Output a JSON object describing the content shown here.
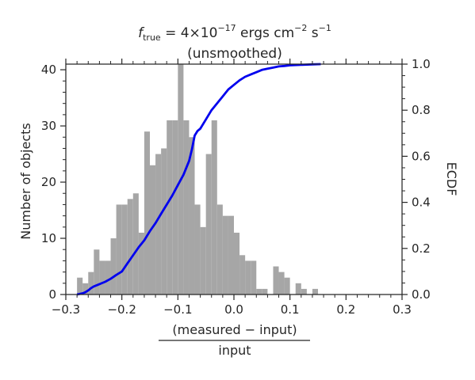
{
  "chart_data": {
    "type": "bar",
    "title": {
      "prefix": "f",
      "prefix_sub": "true",
      "middle": " = 4×10",
      "middle_sup": "−17",
      "unit": " ergs cm",
      "unit_sup": "−2",
      "unit2": " s",
      "unit2_sup": "−1"
    },
    "subtitle": "(unsmoothed)",
    "xlabel_numerator": "(measured − input)",
    "xlabel_denominator": "input",
    "ylabel_left": "Number of objects",
    "ylabel_right": "ECDF",
    "xlim": [
      -0.3,
      0.3
    ],
    "ylim_left": [
      0,
      41
    ],
    "ylim_right": [
      0,
      1.0
    ],
    "x_ticks": [
      "−0.3",
      "−0.2",
      "−0.1",
      "0.0",
      "0.1",
      "0.2",
      "0.3"
    ],
    "y_ticks_left": [
      "0",
      "10",
      "20",
      "30",
      "40"
    ],
    "y_ticks_right": [
      "0.0",
      "0.2",
      "0.4",
      "0.6",
      "0.8",
      "1.0"
    ],
    "histogram": {
      "name": "histogram",
      "color": "#a6a6a6",
      "bin_width": 0.01,
      "bin_lefts": [
        -0.28,
        -0.27,
        -0.26,
        -0.25,
        -0.24,
        -0.23,
        -0.22,
        -0.21,
        -0.2,
        -0.19,
        -0.18,
        -0.17,
        -0.16,
        -0.15,
        -0.14,
        -0.13,
        -0.12,
        -0.11,
        -0.1,
        -0.09,
        -0.08,
        -0.07,
        -0.06,
        -0.05,
        -0.04,
        -0.03,
        -0.02,
        -0.01,
        0.0,
        0.01,
        0.02,
        0.03,
        0.04,
        0.05,
        0.06,
        0.07,
        0.08,
        0.09,
        0.1,
        0.11,
        0.12,
        0.13,
        0.14
      ],
      "counts": [
        3,
        2,
        4,
        8,
        6,
        6,
        10,
        16,
        16,
        17,
        18,
        11,
        29,
        23,
        25,
        26,
        31,
        31,
        41,
        31,
        28,
        16,
        12,
        25,
        31,
        16,
        14,
        14,
        11,
        7,
        6,
        6,
        1,
        1,
        0,
        5,
        4,
        3,
        0,
        2,
        1,
        0,
        1
      ]
    },
    "ecdf": {
      "name": "ECDF",
      "color": "#0000ee",
      "x": [
        -0.28,
        -0.27,
        -0.265,
        -0.26,
        -0.255,
        -0.25,
        -0.24,
        -0.23,
        -0.22,
        -0.21,
        -0.2,
        -0.19,
        -0.18,
        -0.17,
        -0.16,
        -0.15,
        -0.14,
        -0.13,
        -0.12,
        -0.11,
        -0.1,
        -0.09,
        -0.08,
        -0.075,
        -0.07,
        -0.065,
        -0.06,
        -0.05,
        -0.04,
        -0.03,
        -0.02,
        -0.01,
        0.0,
        0.01,
        0.02,
        0.03,
        0.04,
        0.05,
        0.06,
        0.07,
        0.08,
        0.09,
        0.1,
        0.12,
        0.14,
        0.155
      ],
      "y": [
        0.0,
        0.005,
        0.01,
        0.018,
        0.028,
        0.035,
        0.045,
        0.055,
        0.068,
        0.085,
        0.1,
        0.135,
        0.17,
        0.205,
        0.235,
        0.275,
        0.31,
        0.35,
        0.39,
        0.43,
        0.475,
        0.52,
        0.58,
        0.63,
        0.69,
        0.71,
        0.72,
        0.76,
        0.8,
        0.83,
        0.86,
        0.89,
        0.91,
        0.93,
        0.945,
        0.955,
        0.965,
        0.975,
        0.98,
        0.985,
        0.99,
        0.992,
        0.995,
        0.997,
        0.999,
        1.0
      ]
    }
  }
}
